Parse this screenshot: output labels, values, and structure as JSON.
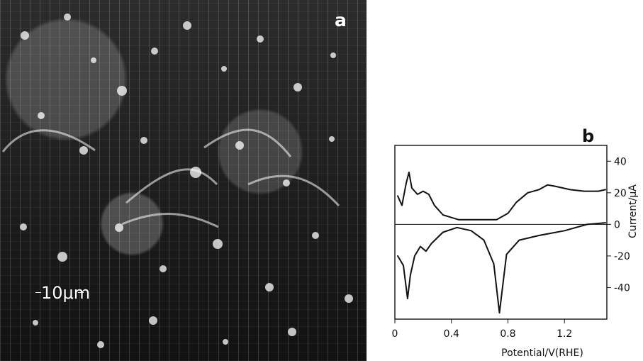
{
  "panel_a": {
    "label": "a",
    "scale_bar": "10μm"
  },
  "panel_b": {
    "label": "b"
  },
  "chart_data": {
    "type": "line",
    "title": "",
    "xlabel": "Potential/V(RHE)",
    "ylabel": "Current/μA",
    "xlim": [
      0,
      1.5
    ],
    "ylim": [
      -60,
      50
    ],
    "x_ticks": [
      "0",
      "0.4",
      "0.8",
      "1.2"
    ],
    "y_ticks": [
      "40",
      "20",
      "0",
      "-20",
      "-40"
    ],
    "grid": false,
    "legend": "none",
    "series": [
      {
        "values": [
          [
            0.02,
            18
          ],
          [
            0.05,
            12
          ],
          [
            0.08,
            26
          ],
          [
            0.1,
            33
          ],
          [
            0.12,
            23
          ],
          [
            0.16,
            19
          ],
          [
            0.2,
            21
          ],
          [
            0.24,
            19
          ],
          [
            0.28,
            12
          ],
          [
            0.34,
            6
          ],
          [
            0.45,
            3
          ],
          [
            0.6,
            3
          ],
          [
            0.72,
            3
          ],
          [
            0.8,
            7
          ],
          [
            0.86,
            14
          ],
          [
            0.94,
            20
          ],
          [
            1.02,
            22
          ],
          [
            1.08,
            25
          ],
          [
            1.14,
            24
          ],
          [
            1.24,
            22
          ],
          [
            1.34,
            21
          ],
          [
            1.44,
            21
          ],
          [
            1.49,
            22
          ]
        ]
      },
      {
        "values": [
          [
            1.49,
            1
          ],
          [
            1.36,
            0
          ],
          [
            1.2,
            -4
          ],
          [
            1.02,
            -7
          ],
          [
            0.88,
            -10
          ],
          [
            0.79,
            -19
          ],
          [
            0.74,
            -56
          ],
          [
            0.7,
            -25
          ],
          [
            0.63,
            -10
          ],
          [
            0.54,
            -4
          ],
          [
            0.44,
            -2
          ],
          [
            0.34,
            -5
          ],
          [
            0.26,
            -12
          ],
          [
            0.22,
            -17
          ],
          [
            0.18,
            -14
          ],
          [
            0.14,
            -20
          ],
          [
            0.11,
            -32
          ],
          [
            0.09,
            -47
          ],
          [
            0.06,
            -26
          ],
          [
            0.02,
            -20
          ]
        ]
      }
    ],
    "reference_line_y": 0
  }
}
